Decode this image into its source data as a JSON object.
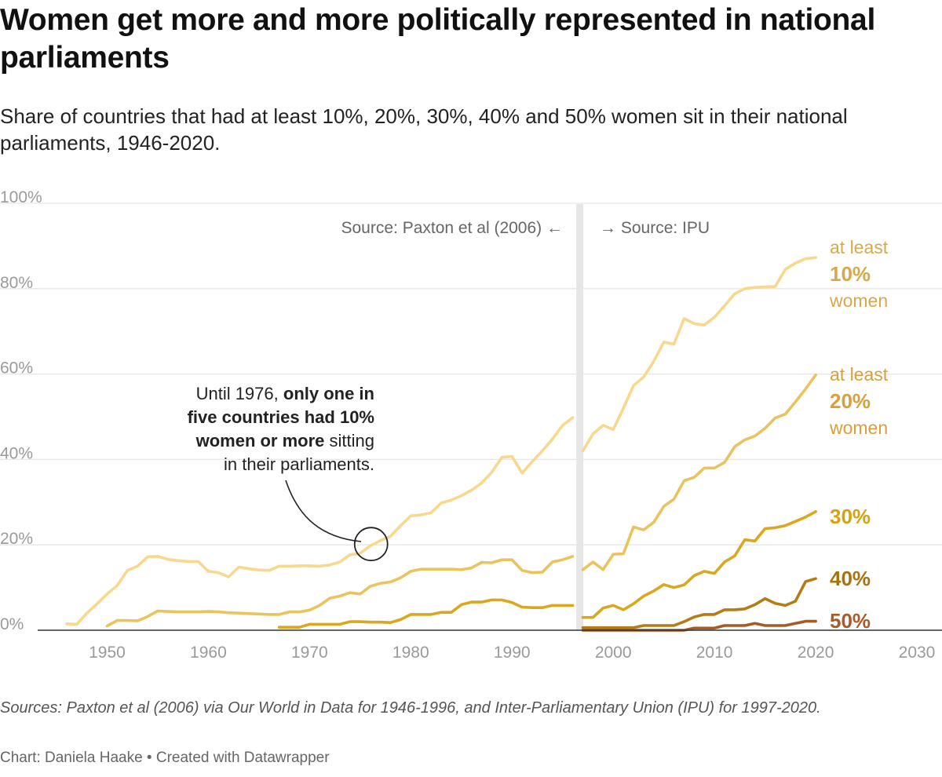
{
  "title": "Women get more and more politically represented in national parliaments",
  "subtitle": "Share of countries that had at least 10%, 20%, 30%, 40% and 50% women sit in their national parliaments, 1946-2020.",
  "notes": "Sources: Paxton et al (2006) via Our World in Data for 1946-1996, and Inter-Parliamentary Union (IPU) for 1997-2020.",
  "byline": "Chart: Daniela Haake • Created with Datawrapper",
  "source_left": "Source: Paxton et al (2006) ←",
  "source_right": "→ Source: IPU",
  "annotation": {
    "line1_plain": "Until 1976, ",
    "line1_bold": "only one in",
    "line2_bold": "five countries had 10%",
    "line3_bold": "women or more",
    "line3_plain": " sitting",
    "line4_plain": "in their parliaments."
  },
  "series_labels": {
    "s10": {
      "prefix": "at least",
      "pct": "10%",
      "suffix": "women"
    },
    "s20": {
      "prefix": "at least",
      "pct": "20%",
      "suffix": "women"
    },
    "s30": {
      "pct": "30%"
    },
    "s40": {
      "pct": "40%"
    },
    "s50": {
      "pct": "50%"
    }
  },
  "colors": {
    "s10": "#f7d88c",
    "s20": "#eac35e",
    "s30": "#d9a720",
    "s40": "#b47c14",
    "s50": "#a65a25",
    "lbl10": "#d8a84a",
    "lbl20": "#d8a03a",
    "lbl30": "#d4a30e",
    "lbl40": "#a8720f",
    "lbl50": "#a9592a",
    "divider": "#e6e6e6",
    "grid": "#e6e6e6",
    "baseline": "#333333"
  },
  "chart_data": {
    "type": "line",
    "xlim": [
      1945,
      2030
    ],
    "ylim": [
      0,
      100
    ],
    "x_ticks": [
      1950,
      1960,
      1970,
      1980,
      1990,
      2000,
      2010,
      2020,
      2030
    ],
    "y_ticks": [
      {
        "value": 0,
        "label": "0%"
      },
      {
        "value": 20,
        "label": "20%"
      },
      {
        "value": 40,
        "label": "40%"
      },
      {
        "value": 60,
        "label": "60%"
      },
      {
        "value": 80,
        "label": "80%"
      },
      {
        "value": 100,
        "label": "100%"
      }
    ],
    "source_break_year": 1996.7,
    "annotation_point": [
      1976,
      20
    ],
    "series": [
      {
        "key": "s10",
        "name": "at least 10% women",
        "segments": [
          [
            [
              1946,
              1.5
            ],
            [
              1947,
              1.4
            ],
            [
              1948,
              4
            ],
            [
              1949,
              6.2
            ],
            [
              1950,
              8.5
            ],
            [
              1951,
              10.5
            ],
            [
              1952,
              14
            ],
            [
              1953,
              15
            ],
            [
              1954,
              17.2
            ],
            [
              1955,
              17.3
            ],
            [
              1956,
              16.6
            ],
            [
              1957,
              16.3
            ],
            [
              1958,
              16.1
            ],
            [
              1959,
              16.1
            ],
            [
              1960,
              13.8
            ],
            [
              1961,
              13.5
            ],
            [
              1962,
              12.5
            ],
            [
              1963,
              14.8
            ],
            [
              1964,
              14.4
            ],
            [
              1965,
              14.1
            ],
            [
              1966,
              14.0
            ],
            [
              1967,
              15.0
            ],
            [
              1968,
              15.0
            ],
            [
              1969,
              15.1
            ],
            [
              1970,
              15.1
            ],
            [
              1971,
              15.0
            ],
            [
              1972,
              15.3
            ],
            [
              1973,
              16.0
            ],
            [
              1974,
              17.7
            ],
            [
              1975,
              18.0
            ],
            [
              1976,
              19.8
            ],
            [
              1977,
              21
            ],
            [
              1978,
              22
            ],
            [
              1979,
              24.5
            ],
            [
              1980,
              26.8
            ],
            [
              1981,
              27.0
            ],
            [
              1982,
              27.5
            ],
            [
              1983,
              29.8
            ],
            [
              1984,
              30.5
            ],
            [
              1985,
              31.5
            ],
            [
              1986,
              32.8
            ],
            [
              1987,
              34.5
            ],
            [
              1988,
              37.0
            ],
            [
              1989,
              40.5
            ],
            [
              1990,
              40.7
            ],
            [
              1991,
              36.8
            ],
            [
              1992,
              39.5
            ],
            [
              1993,
              42
            ],
            [
              1994,
              44.8
            ],
            [
              1995,
              48.0
            ],
            [
              1996,
              49.8
            ]
          ],
          [
            [
              1997,
              42
            ],
            [
              1998,
              46
            ],
            [
              1999,
              48
            ],
            [
              2000,
              47
            ],
            [
              2001,
              52
            ],
            [
              2002,
              57.3
            ],
            [
              2003,
              59.3
            ],
            [
              2004,
              63
            ],
            [
              2005,
              67.5
            ],
            [
              2006,
              67
            ],
            [
              2007,
              73
            ],
            [
              2008,
              71.8
            ],
            [
              2009,
              71.5
            ],
            [
              2010,
              73.3
            ],
            [
              2011,
              76
            ],
            [
              2012,
              78.8
            ],
            [
              2013,
              80
            ],
            [
              2014,
              80.3
            ],
            [
              2015,
              80.4
            ],
            [
              2016,
              80.5
            ],
            [
              2017,
              84.5
            ],
            [
              2018,
              86
            ],
            [
              2019,
              87
            ],
            [
              2020,
              87.3
            ]
          ]
        ]
      },
      {
        "key": "s20",
        "name": "at least 20% women",
        "segments": [
          [
            [
              1950,
              1.0
            ],
            [
              1951,
              2.3
            ],
            [
              1952,
              2.3
            ],
            [
              1953,
              2.2
            ],
            [
              1954,
              3.2
            ],
            [
              1955,
              4.5
            ],
            [
              1956,
              4.4
            ],
            [
              1957,
              4.3
            ],
            [
              1958,
              4.3
            ],
            [
              1959,
              4.3
            ],
            [
              1960,
              4.4
            ],
            [
              1961,
              4.3
            ],
            [
              1962,
              4.1
            ],
            [
              1963,
              4.0
            ],
            [
              1964,
              3.9
            ],
            [
              1965,
              3.8
            ],
            [
              1966,
              3.7
            ],
            [
              1967,
              3.7
            ],
            [
              1968,
              4.3
            ],
            [
              1969,
              4.3
            ],
            [
              1970,
              4.7
            ],
            [
              1971,
              5.8
            ],
            [
              1972,
              7.5
            ],
            [
              1973,
              8.0
            ],
            [
              1974,
              8.8
            ],
            [
              1975,
              8.5
            ],
            [
              1976,
              10.3
            ],
            [
              1977,
              11
            ],
            [
              1978,
              11.3
            ],
            [
              1979,
              12.3
            ],
            [
              1980,
              13.8
            ],
            [
              1981,
              14.3
            ],
            [
              1982,
              14.3
            ],
            [
              1983,
              14.3
            ],
            [
              1984,
              14.3
            ],
            [
              1985,
              14.2
            ],
            [
              1986,
              14.6
            ],
            [
              1987,
              15.9
            ],
            [
              1988,
              15.8
            ],
            [
              1989,
              16.5
            ],
            [
              1990,
              16.5
            ],
            [
              1991,
              14.0
            ],
            [
              1992,
              13.5
            ],
            [
              1993,
              13.6
            ],
            [
              1994,
              16.0
            ],
            [
              1995,
              16.5
            ],
            [
              1996,
              17.3
            ]
          ],
          [
            [
              1997,
              14.2
            ],
            [
              1998,
              16
            ],
            [
              1999,
              14.2
            ],
            [
              2000,
              17.8
            ],
            [
              2001,
              17.9
            ],
            [
              2002,
              24.2
            ],
            [
              2003,
              23.5
            ],
            [
              2004,
              25.3
            ],
            [
              2005,
              29
            ],
            [
              2006,
              30.7
            ],
            [
              2007,
              35
            ],
            [
              2008,
              35.8
            ],
            [
              2009,
              38
            ],
            [
              2010,
              38
            ],
            [
              2011,
              39.3
            ],
            [
              2012,
              43
            ],
            [
              2013,
              44.6
            ],
            [
              2014,
              45.5
            ],
            [
              2015,
              47.3
            ],
            [
              2016,
              49.7
            ],
            [
              2017,
              50.6
            ],
            [
              2018,
              53.5
            ],
            [
              2019,
              56.5
            ],
            [
              2020,
              59.8
            ]
          ]
        ]
      },
      {
        "key": "s30",
        "name": "30%",
        "segments": [
          [
            [
              1967,
              0.7
            ],
            [
              1968,
              0.7
            ],
            [
              1969,
              0.7
            ],
            [
              1970,
              1.4
            ],
            [
              1971,
              1.4
            ],
            [
              1972,
              1.4
            ],
            [
              1973,
              1.4
            ],
            [
              1974,
              2.0
            ],
            [
              1975,
              2.0
            ],
            [
              1976,
              1.9
            ],
            [
              1977,
              1.9
            ],
            [
              1978,
              1.8
            ],
            [
              1979,
              2.5
            ],
            [
              1980,
              3.7
            ],
            [
              1981,
              3.7
            ],
            [
              1982,
              3.7
            ],
            [
              1983,
              4.2
            ],
            [
              1984,
              4.2
            ],
            [
              1985,
              6.0
            ],
            [
              1986,
              6.6
            ],
            [
              1987,
              6.6
            ],
            [
              1988,
              7.1
            ],
            [
              1989,
              7.1
            ],
            [
              1990,
              6.5
            ],
            [
              1991,
              5.4
            ],
            [
              1992,
              5.3
            ],
            [
              1993,
              5.3
            ],
            [
              1994,
              5.8
            ],
            [
              1995,
              5.8
            ],
            [
              1996,
              5.8
            ]
          ],
          [
            [
              1997,
              3.0
            ],
            [
              1998,
              3.0
            ],
            [
              1999,
              5.2
            ],
            [
              2000,
              5.8
            ],
            [
              2001,
              4.8
            ],
            [
              2002,
              6.2
            ],
            [
              2003,
              8
            ],
            [
              2004,
              9.2
            ],
            [
              2005,
              10.7
            ],
            [
              2006,
              10
            ],
            [
              2007,
              10.6
            ],
            [
              2008,
              12.8
            ],
            [
              2009,
              13.8
            ],
            [
              2010,
              13.3
            ],
            [
              2011,
              16
            ],
            [
              2012,
              17.4
            ],
            [
              2013,
              21.2
            ],
            [
              2014,
              20.9
            ],
            [
              2015,
              23.8
            ],
            [
              2016,
              24
            ],
            [
              2017,
              24.5
            ],
            [
              2018,
              25.5
            ],
            [
              2019,
              26.5
            ],
            [
              2020,
              27.8
            ]
          ]
        ]
      },
      {
        "key": "s40",
        "name": "40%",
        "segments": [
          [
            [
              1997,
              0.6
            ],
            [
              1998,
              0.6
            ],
            [
              1999,
              0.6
            ],
            [
              2000,
              0.6
            ],
            [
              2001,
              0.6
            ],
            [
              2002,
              0.6
            ],
            [
              2003,
              1.1
            ],
            [
              2004,
              1.1
            ],
            [
              2005,
              1.1
            ],
            [
              2006,
              1.1
            ],
            [
              2007,
              2.0
            ],
            [
              2008,
              3.1
            ],
            [
              2009,
              3.7
            ],
            [
              2010,
              3.7
            ],
            [
              2011,
              4.8
            ],
            [
              2012,
              4.8
            ],
            [
              2013,
              5.0
            ],
            [
              2014,
              6
            ],
            [
              2015,
              7.4
            ],
            [
              2016,
              6.3
            ],
            [
              2017,
              5.8
            ],
            [
              2018,
              6.8
            ],
            [
              2019,
              11.4
            ],
            [
              2020,
              12.1
            ]
          ]
        ]
      },
      {
        "key": "s50",
        "name": "50%",
        "segments": [
          [
            [
              1997,
              0
            ],
            [
              1998,
              0
            ],
            [
              1999,
              0
            ],
            [
              2000,
              0
            ],
            [
              2001,
              0
            ],
            [
              2002,
              0
            ],
            [
              2003,
              0
            ],
            [
              2004,
              0
            ],
            [
              2005,
              0
            ],
            [
              2006,
              0
            ],
            [
              2007,
              0
            ],
            [
              2008,
              0.5
            ],
            [
              2009,
              0.5
            ],
            [
              2010,
              0.5
            ],
            [
              2011,
              1.1
            ],
            [
              2012,
              1.1
            ],
            [
              2013,
              1.1
            ],
            [
              2014,
              1.6
            ],
            [
              2015,
              1.1
            ],
            [
              2016,
              1.1
            ],
            [
              2017,
              1.1
            ],
            [
              2018,
              1.6
            ],
            [
              2019,
              2.1
            ],
            [
              2020,
              2.1
            ]
          ]
        ]
      }
    ]
  }
}
